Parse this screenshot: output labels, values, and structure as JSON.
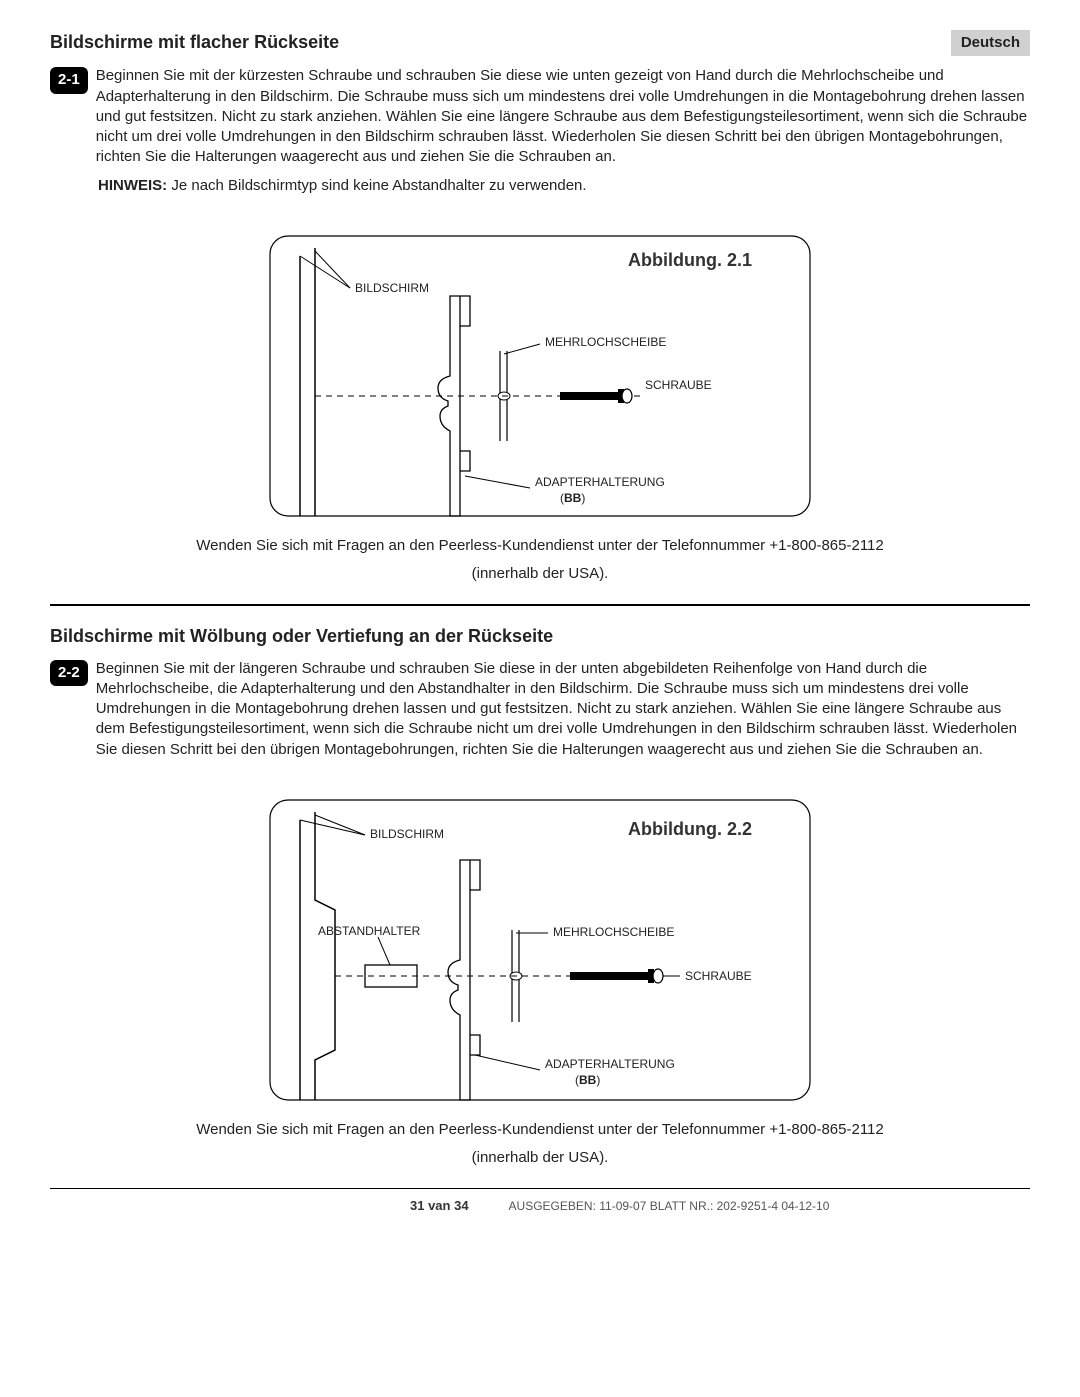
{
  "language_badge": "Deutsch",
  "section1": {
    "title": "Bildschirme mit flacher Rückseite",
    "step_number": "2-1",
    "step_text": "Beginnen Sie mit der kürzesten Schraube und schrauben Sie diese wie unten gezeigt von Hand durch die Mehrlochscheibe und Adapterhalterung in den Bildschirm. Die Schraube muss sich um mindestens drei volle Umdrehungen in die Montagebohrung drehen lassen und gut festsitzen. Nicht zu stark anziehen. Wählen Sie eine längere Schraube aus dem Befestigungsteilesortiment, wenn sich die Schraube nicht um drei volle Umdrehungen in den Bildschirm schrauben lässt. Wiederholen Sie diesen Schritt bei den übrigen Montagebohrungen, richten Sie die Halterungen waagerecht aus und ziehen Sie die Schrauben an.",
    "hint_label": "HINWEIS:",
    "hint_text": " Je nach Bildschirmtyp sind keine Abstandhalter zu verwenden.",
    "figure": {
      "title": "Abbildung. 2.1",
      "labels": {
        "bildschirm": "BILDSCHIRM",
        "mehrlochscheibe": "MEHRLOCHSCHEIBE",
        "schraube": "SCHRAUBE",
        "adapterhalterung": "ADAPTERHALTERUNG",
        "bb": "(BB)"
      }
    },
    "caption_line1": "Wenden Sie sich mit Fragen an den Peerless-Kundendienst unter der Telefonnummer +1-800-865-2112",
    "caption_line2": "(innerhalb der USA)."
  },
  "section2": {
    "title": "Bildschirme mit Wölbung oder Vertiefung an der Rückseite",
    "step_number": "2-2",
    "step_text": "Beginnen Sie mit der längeren Schraube und schrauben Sie diese in der unten abgebildeten Reihenfolge von Hand durch die Mehrlochscheibe, die Adapterhalterung und den Abstandhalter in den Bildschirm. Die Schraube muss sich um mindestens drei volle Umdrehungen in die Montagebohrung drehen lassen und gut festsitzen. Nicht zu stark anziehen. Wählen Sie eine längere Schraube aus dem Befestigungsteilesortiment, wenn sich die Schraube nicht um drei volle Umdrehungen in den Bildschirm schrauben lässt. Wiederholen Sie diesen Schritt bei den übrigen Montagebohrungen, richten Sie die Halterungen waagerecht aus und ziehen Sie die Schrauben an.",
    "figure": {
      "title": "Abbildung. 2.2",
      "labels": {
        "bildschirm": "BILDSCHIRM",
        "abstandhalter": "ABSTANDHALTER",
        "mehrlochscheibe": "MEHRLOCHSCHEIBE",
        "schraube": "SCHRAUBE",
        "adapterhalterung": "ADAPTERHALTERUNG",
        "bb": "(BB)"
      }
    },
    "caption_line1": "Wenden Sie sich mit Fragen an den Peerless-Kundendienst unter der Telefonnummer +1-800-865-2112",
    "caption_line2": "(innerhalb der USA)."
  },
  "footer": {
    "page": "31 van 34",
    "meta": "AUSGEGEBEN: 11-09-07  BLATT NR.: 202-9251-4   04-12-10"
  },
  "colors": {
    "text": "#222222",
    "badge_bg": "#d0d0d0",
    "step_bg": "#000000",
    "step_fg": "#ffffff",
    "line": "#000000"
  }
}
